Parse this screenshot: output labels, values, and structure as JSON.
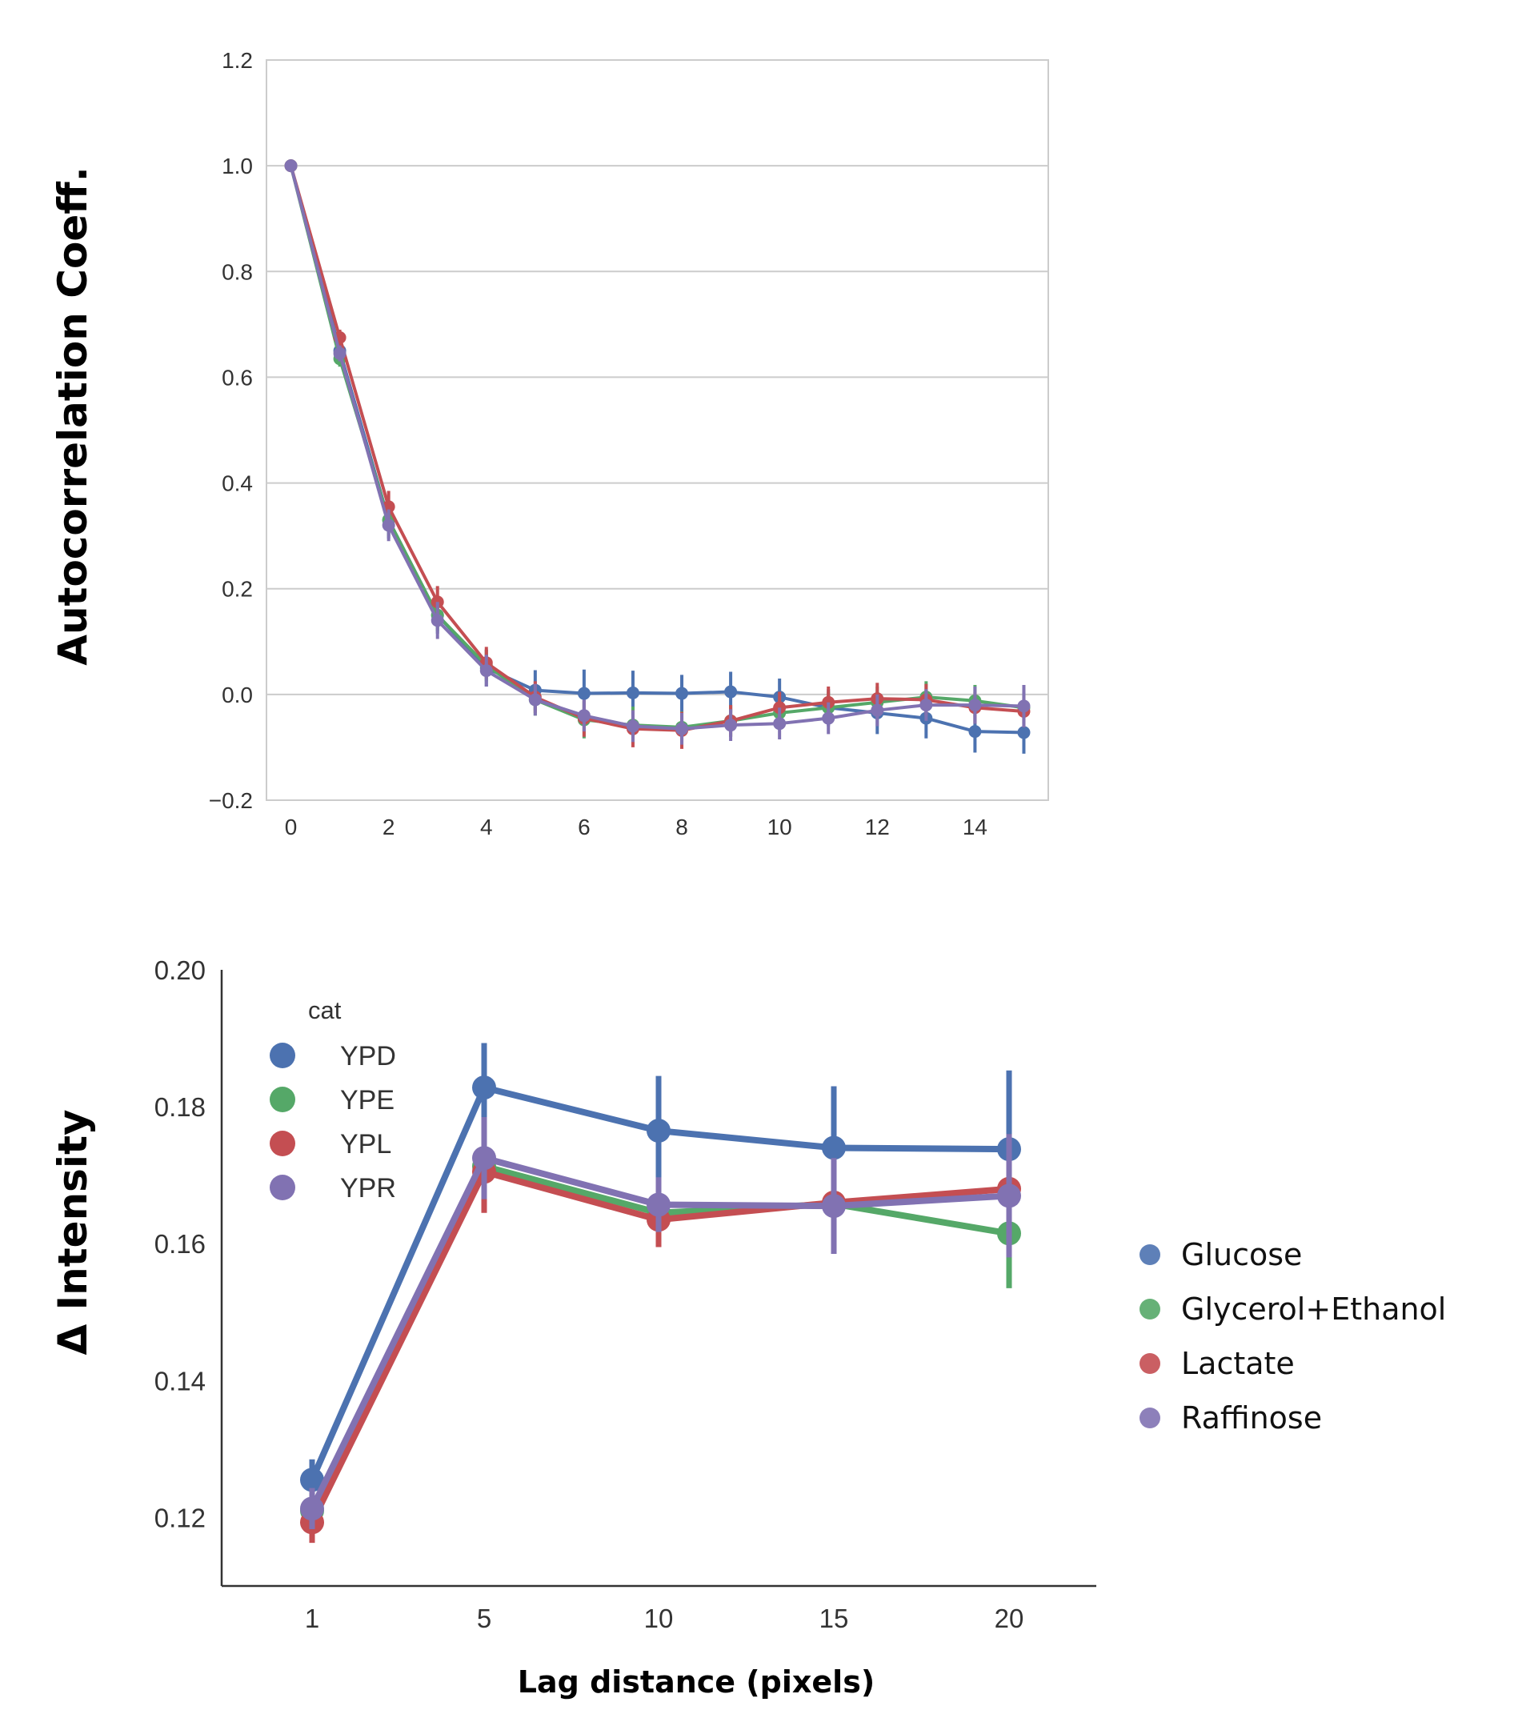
{
  "chart_data": [
    {
      "type": "line",
      "ylabel": "Autocorrelation Coeff.",
      "xlabel": "",
      "xlim": [
        -0.5,
        15.5
      ],
      "ylim": [
        -0.2,
        1.2
      ],
      "x_ticks": [
        "0",
        "2",
        "4",
        "6",
        "8",
        "10",
        "12",
        "14"
      ],
      "x_tick_values": [
        0,
        2,
        4,
        6,
        8,
        10,
        12,
        14
      ],
      "y_ticks": [
        "−0.2",
        "0.0",
        "0.2",
        "0.4",
        "0.6",
        "0.8",
        "1.0",
        "1.2"
      ],
      "y_tick_values": [
        -0.2,
        0.0,
        0.2,
        0.4,
        0.6,
        0.8,
        1.0,
        1.2
      ],
      "grid": "horizontal",
      "x": [
        0,
        1,
        2,
        3,
        4,
        5,
        6,
        7,
        8,
        9,
        10,
        11,
        12,
        13,
        14,
        15
      ],
      "series": [
        {
          "color": "#4c72b0",
          "values": [
            1.0,
            0.65,
            0.33,
            0.15,
            0.05,
            0.008,
            0.002,
            0.003,
            0.002,
            0.005,
            -0.005,
            -0.025,
            -0.035,
            -0.045,
            -0.07,
            -0.072
          ],
          "err": [
            0,
            0.015,
            0.035,
            0.035,
            0.035,
            0.038,
            0.045,
            0.042,
            0.035,
            0.038,
            0.035,
            0.035,
            0.04,
            0.038,
            0.04,
            0.04
          ]
        },
        {
          "color": "#55a868",
          "values": [
            1.0,
            0.635,
            0.33,
            0.15,
            0.055,
            -0.01,
            -0.048,
            -0.058,
            -0.062,
            -0.05,
            -0.035,
            -0.025,
            -0.015,
            -0.005,
            -0.012,
            -0.025
          ],
          "err": [
            0,
            0.015,
            0.03,
            0.03,
            0.03,
            0.03,
            0.035,
            0.035,
            0.03,
            0.03,
            0.03,
            0.03,
            0.03,
            0.03,
            0.03,
            0.03
          ]
        },
        {
          "color": "#c44e52",
          "values": [
            1.0,
            0.675,
            0.355,
            0.175,
            0.06,
            -0.005,
            -0.045,
            -0.065,
            -0.068,
            -0.05,
            -0.025,
            -0.015,
            -0.008,
            -0.01,
            -0.025,
            -0.032
          ],
          "err": [
            0,
            0.015,
            0.03,
            0.03,
            0.03,
            0.03,
            0.035,
            0.035,
            0.035,
            0.03,
            0.03,
            0.03,
            0.03,
            0.03,
            0.03,
            0.03
          ]
        },
        {
          "color": "#8172b2",
          "values": [
            1.0,
            0.645,
            0.32,
            0.14,
            0.045,
            -0.01,
            -0.04,
            -0.06,
            -0.065,
            -0.058,
            -0.055,
            -0.045,
            -0.03,
            -0.02,
            -0.02,
            -0.022
          ],
          "err": [
            0,
            0.015,
            0.03,
            0.035,
            0.03,
            0.03,
            0.03,
            0.03,
            0.03,
            0.03,
            0.03,
            0.03,
            0.03,
            0.03,
            0.035,
            0.04
          ]
        }
      ]
    },
    {
      "type": "line",
      "ylabel": "Δ Intensity",
      "xlabel": "Lag distance (pixels)",
      "categories": [
        "1",
        "5",
        "10",
        "15",
        "20"
      ],
      "ylim": [
        0.11,
        0.2
      ],
      "y_ticks": [
        "0.12",
        "0.14",
        "0.16",
        "0.18",
        "0.20"
      ],
      "y_tick_values": [
        0.12,
        0.14,
        0.16,
        0.18,
        0.2
      ],
      "grid": "none",
      "legend_title": "cat",
      "legend_position": "top-left",
      "series": [
        {
          "name": "YPD",
          "color": "#4c72b0",
          "values": [
            0.1255,
            0.1828,
            0.1765,
            0.174,
            0.1738
          ],
          "err": [
            0.003,
            0.0065,
            0.008,
            0.009,
            0.0115
          ]
        },
        {
          "name": "YPE",
          "color": "#55a868",
          "values": [
            0.121,
            0.1713,
            0.1645,
            0.1658,
            0.1615
          ],
          "err": [
            0.003,
            0.006,
            0.0045,
            0.006,
            0.008
          ]
        },
        {
          "name": "YPL",
          "color": "#c44e52",
          "values": [
            0.1193,
            0.1705,
            0.1635,
            0.166,
            0.168
          ],
          "err": [
            0.003,
            0.006,
            0.004,
            0.006,
            0.008
          ]
        },
        {
          "name": "YPR",
          "color": "#8172b2",
          "values": [
            0.1213,
            0.1725,
            0.1657,
            0.1655,
            0.167
          ],
          "err": [
            0.003,
            0.006,
            0.004,
            0.007,
            0.009
          ]
        }
      ]
    }
  ],
  "outer_legend": {
    "items": [
      {
        "label": "Glucose",
        "color": "#4c72b0"
      },
      {
        "label": "Glycerol+Ethanol",
        "color": "#55a868"
      },
      {
        "label": "Lactate",
        "color": "#c44e52"
      },
      {
        "label": "Raffinose",
        "color": "#8172b2"
      }
    ]
  }
}
